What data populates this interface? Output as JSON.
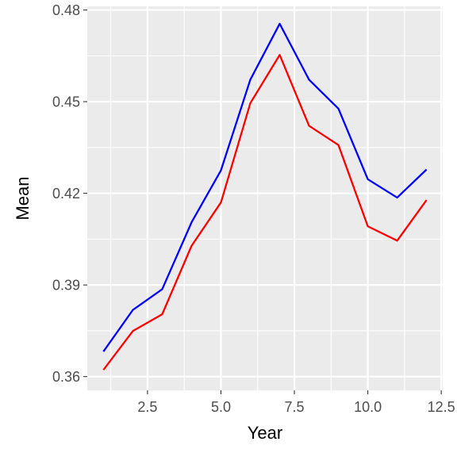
{
  "chart_data": {
    "type": "line",
    "xlabel": "Year",
    "ylabel": "Mean",
    "xlim": [
      0.45,
      12.55
    ],
    "ylim": [
      0.3555,
      0.4812
    ],
    "x_ticks": [
      {
        "value": 2.5,
        "label": "2.5"
      },
      {
        "value": 5.0,
        "label": "5.0"
      },
      {
        "value": 7.5,
        "label": "7.5"
      },
      {
        "value": 10.0,
        "label": "10.0"
      },
      {
        "value": 12.5,
        "label": "12.5"
      }
    ],
    "y_ticks": [
      {
        "value": 0.36,
        "label": "0.36"
      },
      {
        "value": 0.39,
        "label": "0.39"
      },
      {
        "value": 0.42,
        "label": "0.42"
      },
      {
        "value": 0.45,
        "label": "0.45"
      },
      {
        "value": 0.48,
        "label": "0.48"
      }
    ],
    "grid": true,
    "legend": "none",
    "x": [
      1,
      2,
      3,
      4,
      5,
      6,
      7,
      8,
      9,
      10,
      11,
      12
    ],
    "series": [
      {
        "color": "#0000ff",
        "values": [
          0.3682,
          0.3818,
          0.3886,
          0.4105,
          0.4275,
          0.4572,
          0.4755,
          0.4572,
          0.4477,
          0.4246,
          0.4186,
          0.4278
        ]
      },
      {
        "color": "#ff0000",
        "values": [
          0.3622,
          0.3749,
          0.3804,
          0.4028,
          0.417,
          0.4495,
          0.4653,
          0.4421,
          0.4358,
          0.4092,
          0.4045,
          0.4178
        ]
      }
    ],
    "colors": {
      "panel_background": "#ebebeb",
      "grid_major": "#ffffff",
      "tick_mark": "#333333"
    }
  }
}
